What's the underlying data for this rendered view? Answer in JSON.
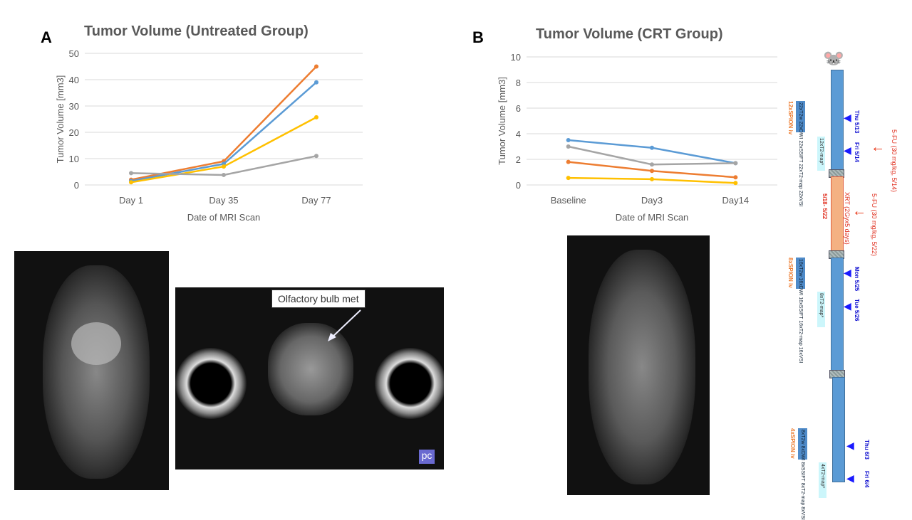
{
  "panels": {
    "a": "A",
    "b": "B"
  },
  "chart_data": [
    {
      "type": "line",
      "title": "Tumor Volume (Untreated Group)",
      "xlabel": "Date of MRI Scan",
      "ylabel": "Tumor Volume [mm3]",
      "categories": [
        "Day 1",
        "Day  35",
        "Day 77"
      ],
      "ylim": [
        0,
        50
      ],
      "yticks": [
        0,
        10,
        20,
        30,
        40,
        50
      ],
      "grid": true,
      "series": [
        {
          "name": "orange",
          "color": "#ed7d31",
          "values": [
            2,
            9,
            45
          ]
        },
        {
          "name": "blue",
          "color": "#5b9bd5",
          "values": [
            1.5,
            8,
            39
          ]
        },
        {
          "name": "yellow",
          "color": "#ffc000",
          "values": [
            1,
            7,
            25.7
          ]
        },
        {
          "name": "gray",
          "color": "#a5a5a5",
          "values": [
            4.5,
            3.8,
            11
          ]
        }
      ]
    },
    {
      "type": "line",
      "title": "Tumor Volume (CRT Group)",
      "xlabel": "Date of MRI Scan",
      "ylabel": "Tumor Volume [mm3]",
      "categories": [
        "Baseline",
        "Day3",
        "Day14"
      ],
      "ylim": [
        0,
        10
      ],
      "yticks": [
        0,
        2,
        4,
        6,
        8,
        10
      ],
      "grid": true,
      "series": [
        {
          "name": "blue",
          "color": "#5b9bd5",
          "values": [
            3.5,
            2.9,
            1.7
          ]
        },
        {
          "name": "gray",
          "color": "#a5a5a5",
          "values": [
            3.0,
            1.6,
            1.7
          ]
        },
        {
          "name": "orange",
          "color": "#ed7d31",
          "values": [
            1.8,
            1.1,
            0.6
          ]
        },
        {
          "name": "yellow",
          "color": "#ffc000",
          "values": [
            0.55,
            0.45,
            0.15
          ]
        }
      ]
    }
  ],
  "annotation": "Olfactory bulb met",
  "timeline": {
    "groups": [
      {
        "spion": "12xSPION iv",
        "box": [
          "22xT2w",
          "22xDWI",
          "22xSSIFT",
          "22xT2-map",
          "22xVSI"
        ],
        "cyan": "12xT2-map*",
        "dates": [
          "Thu 5/13",
          "Fri 5/14"
        ]
      },
      {
        "spion": "8xSPION iv",
        "box": [
          "16xT2w",
          "16xDWI",
          "16xSSIFT",
          "16xT2-map",
          "16xVSI"
        ],
        "cyan": "8xT2-map*",
        "dates": [
          "Mon 5/25",
          "Tue 5/26"
        ]
      },
      {
        "spion": "4xSPION iv",
        "box": [
          "8xT2w",
          "8xDWI",
          "8xSSIFT",
          "8xT2-map",
          "8xVSI"
        ],
        "cyan": "4xT2-map*",
        "dates": [
          "Thu 6/3",
          "Fri 6/4"
        ]
      }
    ],
    "xrt": "XRT (2Gyx5 days)",
    "xrt_dates": "5/18- 5/22",
    "fu1": "5-FU (30 mg/kg, 5/14)",
    "fu2": "5-FU (30 mg/kg, 5/22)",
    "watermark": "pc"
  }
}
